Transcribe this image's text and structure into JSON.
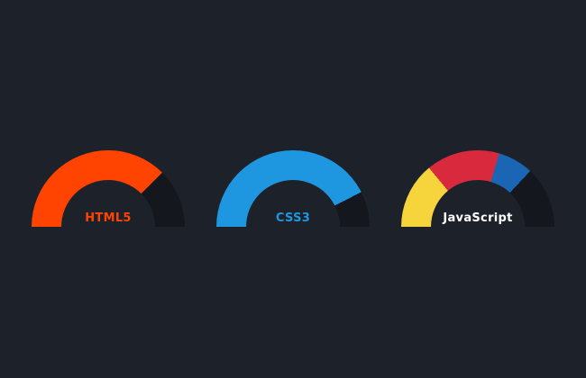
{
  "background": "#1d222a",
  "chart_data": [
    {
      "type": "gauge",
      "title": "HTML5",
      "label_color": "#ff4300",
      "range": [
        0,
        1
      ],
      "segments": [
        {
          "name": "filled",
          "color": "#ff4300",
          "fraction": 0.75
        },
        {
          "name": "remainder",
          "color": "#14171d",
          "fraction": 0.25
        }
      ]
    },
    {
      "type": "gauge",
      "title": "CSS3",
      "label_color": "#1f97e0",
      "range": [
        0,
        1
      ],
      "segments": [
        {
          "name": "filled",
          "color": "#1f97e0",
          "fraction": 0.85
        },
        {
          "name": "remainder",
          "color": "#14171d",
          "fraction": 0.15
        }
      ]
    },
    {
      "type": "gauge",
      "title": "JavaScript",
      "label_color": "#ffffff",
      "range": [
        0,
        1
      ],
      "segments": [
        {
          "name": "segment-yellow",
          "color": "#f6d43c",
          "fraction": 0.28
        },
        {
          "name": "segment-red",
          "color": "#d8293d",
          "fraction": 0.31
        },
        {
          "name": "segment-blue",
          "color": "#1a66b4",
          "fraction": 0.15
        },
        {
          "name": "remainder",
          "color": "#14171d",
          "fraction": 0.26
        }
      ]
    }
  ]
}
